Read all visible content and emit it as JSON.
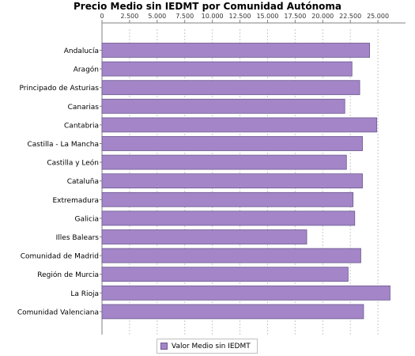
{
  "chart_data": {
    "type": "bar",
    "orientation": "horizontal",
    "title": "Precio Medio sin IEDMT por Comunidad Autónoma",
    "xlabel": "",
    "ylabel": "",
    "xlim": [
      0,
      27500
    ],
    "x_ticks": [
      "0",
      "2.500",
      "5.000",
      "7.500",
      "10.000",
      "12.500",
      "15.000",
      "17.500",
      "20.000",
      "22.500",
      "25.000"
    ],
    "x_tick_values": [
      0,
      2500,
      5000,
      7500,
      10000,
      12500,
      15000,
      17500,
      20000,
      22500,
      25000
    ],
    "axis_position": "top",
    "grid": true,
    "legend_placement": "bottom",
    "categories": [
      "Andalucía",
      "Aragón",
      "Principado de Asturias",
      "Canarias",
      "Cantabria",
      "Castilla - La Mancha",
      "Castilla y León",
      "Cataluña",
      "Extremadura",
      "Galicia",
      "Illes Balears",
      "Comunidad de Madrid",
      "Región de Murcia",
      "La Rioja",
      "Comunidad Valenciana"
    ],
    "series": [
      {
        "name": "Valor Medio sin IEDMT",
        "color": "#a385c8",
        "values": [
          24250,
          22650,
          23350,
          22000,
          24900,
          23600,
          22150,
          23600,
          22750,
          22900,
          18550,
          23450,
          22300,
          26100,
          23700
        ]
      }
    ]
  }
}
